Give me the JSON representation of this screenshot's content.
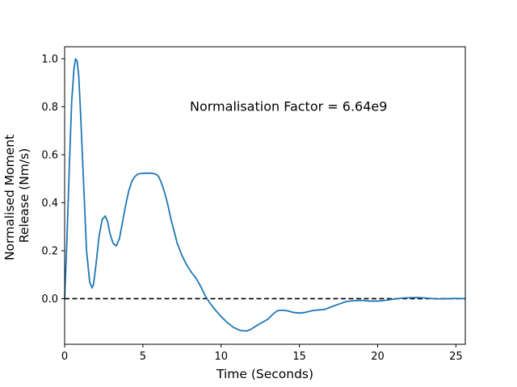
{
  "chart_data": {
    "type": "line",
    "xlabel": "Time (Seconds)",
    "ylabel_lines": [
      "Normalised Moment",
      "Release (Nm/s)"
    ],
    "xlim": [
      0,
      25.6
    ],
    "ylim": [
      -0.19,
      1.05
    ],
    "xticks": [
      0,
      5,
      10,
      15,
      20,
      25
    ],
    "yticks": [
      0.0,
      0.2,
      0.4,
      0.6,
      0.8,
      1.0
    ],
    "ytick_labels": [
      "0.0",
      "0.2",
      "0.4",
      "0.6",
      "0.8",
      "1.0"
    ],
    "grid": false,
    "annotation": {
      "text": "Normalisation Factor = 6.64e9",
      "x": 8.0,
      "y": 0.8
    },
    "reference_line": {
      "y": 0.0,
      "style": "dashed",
      "color": "#000000"
    },
    "series": [
      {
        "color": "#1f77b4",
        "x": [
          0.0,
          0.15,
          0.3,
          0.45,
          0.6,
          0.7,
          0.8,
          0.9,
          1.0,
          1.2,
          1.4,
          1.6,
          1.75,
          1.85,
          2.0,
          2.2,
          2.4,
          2.6,
          2.75,
          2.9,
          3.1,
          3.3,
          3.5,
          3.7,
          3.9,
          4.1,
          4.3,
          4.5,
          4.7,
          4.9,
          5.2,
          5.5,
          5.8,
          6.0,
          6.2,
          6.4,
          6.6,
          6.8,
          7.0,
          7.2,
          7.5,
          7.8,
          8.1,
          8.4,
          8.7,
          9.0,
          9.3,
          9.6,
          10.0,
          10.4,
          10.8,
          11.2,
          11.6,
          11.9,
          12.2,
          12.6,
          13.0,
          13.3,
          13.6,
          13.9,
          14.2,
          14.6,
          15.0,
          15.4,
          15.8,
          16.2,
          16.6,
          17.0,
          17.5,
          18.0,
          18.5,
          19.0,
          19.5,
          20.0,
          20.5,
          21.0,
          21.5,
          22.0,
          22.5,
          22.8,
          23.2,
          23.6,
          24.0,
          24.5,
          25.0,
          25.6
        ],
        "y": [
          0.0,
          0.25,
          0.55,
          0.82,
          0.96,
          1.0,
          0.99,
          0.93,
          0.8,
          0.5,
          0.2,
          0.07,
          0.045,
          0.06,
          0.14,
          0.26,
          0.33,
          0.345,
          0.32,
          0.27,
          0.23,
          0.22,
          0.25,
          0.32,
          0.39,
          0.45,
          0.49,
          0.51,
          0.52,
          0.522,
          0.523,
          0.523,
          0.52,
          0.51,
          0.48,
          0.44,
          0.39,
          0.33,
          0.28,
          0.23,
          0.18,
          0.14,
          0.11,
          0.085,
          0.05,
          0.01,
          -0.02,
          -0.045,
          -0.075,
          -0.1,
          -0.12,
          -0.132,
          -0.135,
          -0.128,
          -0.115,
          -0.1,
          -0.085,
          -0.065,
          -0.05,
          -0.048,
          -0.05,
          -0.057,
          -0.06,
          -0.057,
          -0.05,
          -0.047,
          -0.045,
          -0.035,
          -0.023,
          -0.012,
          -0.008,
          -0.007,
          -0.01,
          -0.01,
          -0.007,
          -0.002,
          0.002,
          0.004,
          0.005,
          0.004,
          0.002,
          0.0,
          -0.001,
          0.0,
          0.001,
          0.0
        ]
      }
    ]
  }
}
